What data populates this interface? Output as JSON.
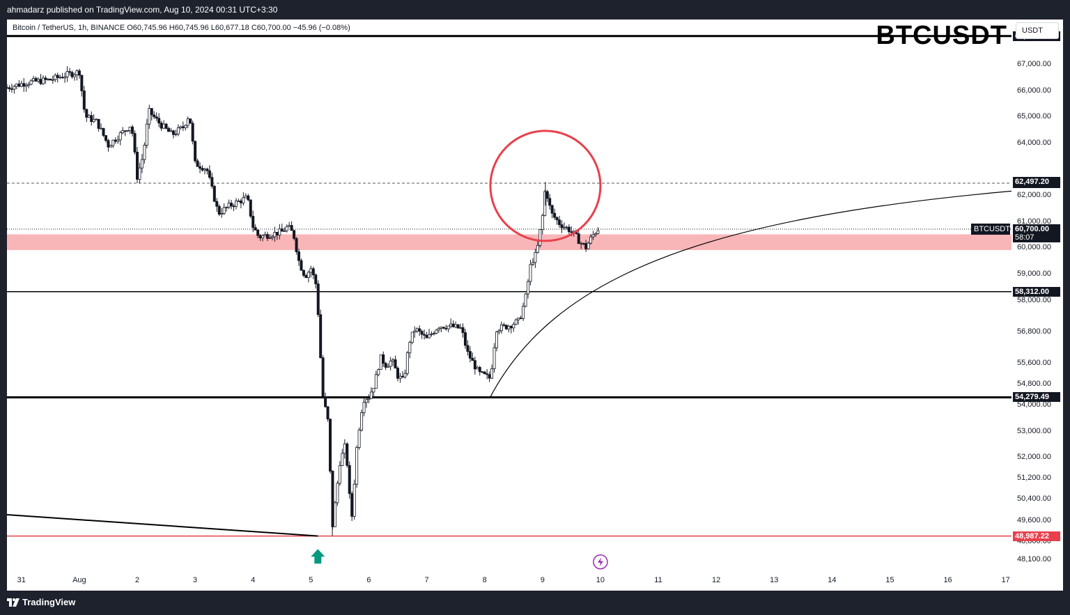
{
  "header": {
    "published": "ahmadarz published on TradingView.com, Aug 10, 2024 00:31 UTC+3:30"
  },
  "symbol_line": "Bitcoin / TetherUS, 1h, BINANCE  O60,745.96  H60,745.96  L60,677.18  C60,700.00  −45.96 (−0.08%)",
  "watermark": "BTCUSDT",
  "currency": "USDT",
  "footer": {
    "brand": "TradingView"
  },
  "symbol_tag": "BTCUSDT",
  "colors": {
    "up": "#131722",
    "down": "#131722",
    "zone": "#f9b6b8",
    "circle": "#e8404c",
    "low_line": "#e8404c",
    "arrow": "#089981",
    "flash": "#9c27b0"
  },
  "chart_data": {
    "type": "candlestick",
    "title": "BTCUSDT",
    "x_unit": "day",
    "x_range": [
      -0.25,
      17.1
    ],
    "ylim": [
      47700,
      68700
    ],
    "x_ticks": [
      {
        "label": "31",
        "x": 0
      },
      {
        "label": "Aug",
        "x": 1
      },
      {
        "label": "2",
        "x": 2
      },
      {
        "label": "3",
        "x": 3
      },
      {
        "label": "4",
        "x": 4
      },
      {
        "label": "5",
        "x": 5
      },
      {
        "label": "6",
        "x": 6
      },
      {
        "label": "7",
        "x": 7
      },
      {
        "label": "8",
        "x": 8
      },
      {
        "label": "9",
        "x": 9
      },
      {
        "label": "10",
        "x": 10
      },
      {
        "label": "11",
        "x": 11
      },
      {
        "label": "12",
        "x": 12
      },
      {
        "label": "13",
        "x": 13
      },
      {
        "label": "14",
        "x": 14
      },
      {
        "label": "15",
        "x": 15
      },
      {
        "label": "16",
        "x": 16
      },
      {
        "label": "17",
        "x": 17
      }
    ],
    "y_ticks": [
      "67,000.00",
      "66,000.00",
      "65,000.00",
      "64,000.00",
      "62,000.00",
      "61,000.00",
      "60,000.00",
      "59,000.00",
      "58,000.00",
      "56,800.00",
      "55,600.00",
      "54,800.00",
      "54,000.00",
      "53,000.00",
      "52,000.00",
      "51,200.00",
      "50,400.00",
      "49,600.00",
      "48,800.00",
      "48,100.00"
    ],
    "y_tick_values": [
      67000,
      66000,
      65000,
      64000,
      62000,
      61000,
      60000,
      59000,
      58000,
      56800,
      55600,
      54800,
      54000,
      53000,
      52000,
      51200,
      50400,
      49600,
      48800,
      48100
    ],
    "path_points": [
      [
        -0.25,
        66100
      ],
      [
        0.1,
        66300
      ],
      [
        0.5,
        66400
      ],
      [
        0.8,
        66600
      ],
      [
        1.0,
        66700
      ],
      [
        1.1,
        65000
      ],
      [
        1.3,
        64800
      ],
      [
        1.5,
        63900
      ],
      [
        1.7,
        64300
      ],
      [
        1.9,
        64700
      ],
      [
        2.0,
        62700
      ],
      [
        2.1,
        63500
      ],
      [
        2.2,
        65200
      ],
      [
        2.4,
        64700
      ],
      [
        2.6,
        64300
      ],
      [
        2.8,
        64600
      ],
      [
        2.9,
        65100
      ],
      [
        3.0,
        63200
      ],
      [
        3.2,
        63000
      ],
      [
        3.4,
        61300
      ],
      [
        3.6,
        61600
      ],
      [
        3.8,
        61800
      ],
      [
        3.9,
        61900
      ],
      [
        4.0,
        60800
      ],
      [
        4.1,
        60400
      ],
      [
        4.3,
        60500
      ],
      [
        4.5,
        60600
      ],
      [
        4.6,
        60800
      ],
      [
        4.7,
        60500
      ],
      [
        4.8,
        59400
      ],
      [
        4.9,
        58900
      ],
      [
        5.0,
        59200
      ],
      [
        5.1,
        58500
      ],
      [
        5.15,
        56500
      ],
      [
        5.2,
        54400
      ],
      [
        5.3,
        53300
      ],
      [
        5.37,
        49300
      ],
      [
        5.5,
        51800
      ],
      [
        5.6,
        52500
      ],
      [
        5.7,
        49500
      ],
      [
        5.8,
        52600
      ],
      [
        5.9,
        54200
      ],
      [
        6.0,
        54300
      ],
      [
        6.1,
        54800
      ],
      [
        6.2,
        55800
      ],
      [
        6.3,
        55500
      ],
      [
        6.4,
        55700
      ],
      [
        6.5,
        55100
      ],
      [
        6.6,
        54900
      ],
      [
        6.7,
        56400
      ],
      [
        6.8,
        56900
      ],
      [
        7.0,
        56500
      ],
      [
        7.2,
        57000
      ],
      [
        7.4,
        57000
      ],
      [
        7.6,
        56900
      ],
      [
        7.7,
        56000
      ],
      [
        7.9,
        55200
      ],
      [
        8.1,
        55000
      ],
      [
        8.2,
        56900
      ],
      [
        8.4,
        57000
      ],
      [
        8.6,
        57200
      ],
      [
        8.7,
        58000
      ],
      [
        8.8,
        59400
      ],
      [
        8.9,
        59800
      ],
      [
        9.0,
        61200
      ],
      [
        9.05,
        62300
      ],
      [
        9.15,
        61300
      ],
      [
        9.3,
        60900
      ],
      [
        9.45,
        60700
      ],
      [
        9.55,
        60500
      ],
      [
        9.65,
        60200
      ],
      [
        9.75,
        60000
      ],
      [
        9.85,
        60400
      ],
      [
        9.95,
        60700
      ]
    ],
    "levels": [
      {
        "value": 68067.36,
        "label": "68,067.36",
        "style": "solid-thick"
      },
      {
        "value": 62454.0,
        "label": "62,454.00",
        "style": "dashed"
      },
      {
        "value": 62497.2,
        "label": "62,497.20",
        "style": "label-only"
      },
      {
        "value": 58312.0,
        "label": "58,312.00",
        "style": "solid"
      },
      {
        "value": 54279.49,
        "label": "54,279.49",
        "style": "solid-thick"
      },
      {
        "value": 48987.22,
        "label": "48,987.22",
        "style": "red"
      }
    ],
    "last_price": {
      "value": 60700.0,
      "label": "60,700.00",
      "countdown": "58:07"
    },
    "zone": {
      "from": 59900,
      "to": 60500
    },
    "curve": {
      "start": [
        8.1,
        54300
      ],
      "end": [
        17.1,
        62150
      ]
    },
    "trendline": {
      "start": [
        -0.25,
        49800
      ],
      "end": [
        5.12,
        48987.22
      ]
    }
  }
}
